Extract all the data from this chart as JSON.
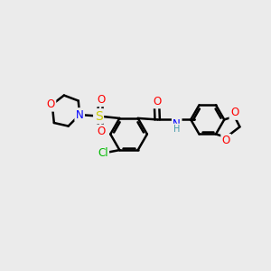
{
  "bg_color": "#ebebeb",
  "bond_color": "#000000",
  "bond_width": 1.8,
  "atom_colors": {
    "O": "#ff0000",
    "N": "#0000ff",
    "S": "#cccc00",
    "Cl": "#00bb00",
    "C": "#000000",
    "H": "#555555",
    "NH": "#4499aa"
  },
  "font_size": 8.5,
  "fig_size": [
    3.0,
    3.0
  ],
  "dpi": 100
}
